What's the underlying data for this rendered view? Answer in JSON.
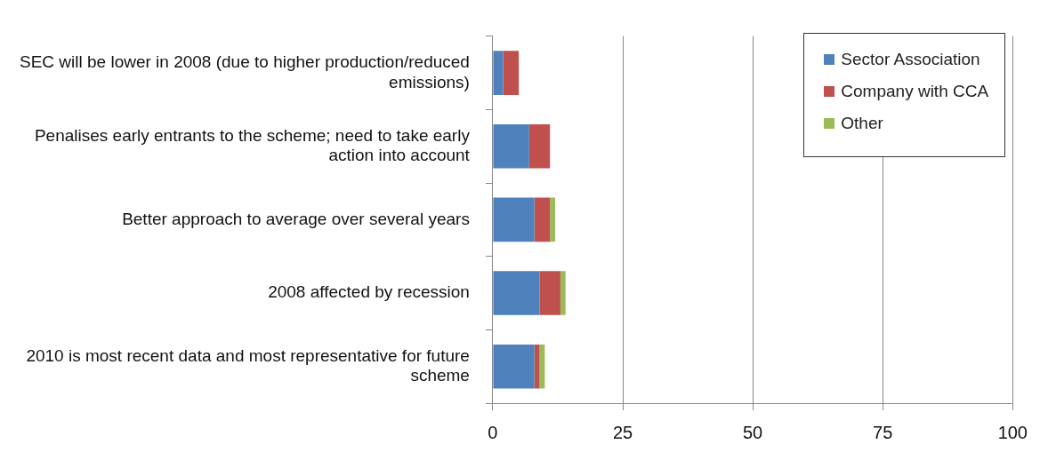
{
  "chart_data": {
    "type": "bar",
    "orientation": "horizontal",
    "stacked": true,
    "categories": [
      "SEC will be lower in 2008 (due to higher production/reduced emissions)",
      "Penalises early entrants to the scheme; need to take early action into account",
      "Better approach to average over several years",
      "2008 affected by recession",
      "2010 is most recent data and most representative for future scheme"
    ],
    "series": [
      {
        "name": "Sector Association",
        "color": "#4f81bd",
        "values": [
          2,
          7,
          8,
          9,
          8
        ]
      },
      {
        "name": "Company with CCA",
        "color": "#c0504d",
        "values": [
          3,
          4,
          3,
          4,
          1
        ]
      },
      {
        "name": "Other",
        "color": "#9bbb59",
        "values": [
          0,
          0,
          1,
          1,
          1
        ]
      }
    ],
    "xlim": [
      0,
      100
    ],
    "xticks": [
      0,
      25,
      50,
      75,
      100
    ],
    "grid": "x",
    "legend": "top right"
  }
}
